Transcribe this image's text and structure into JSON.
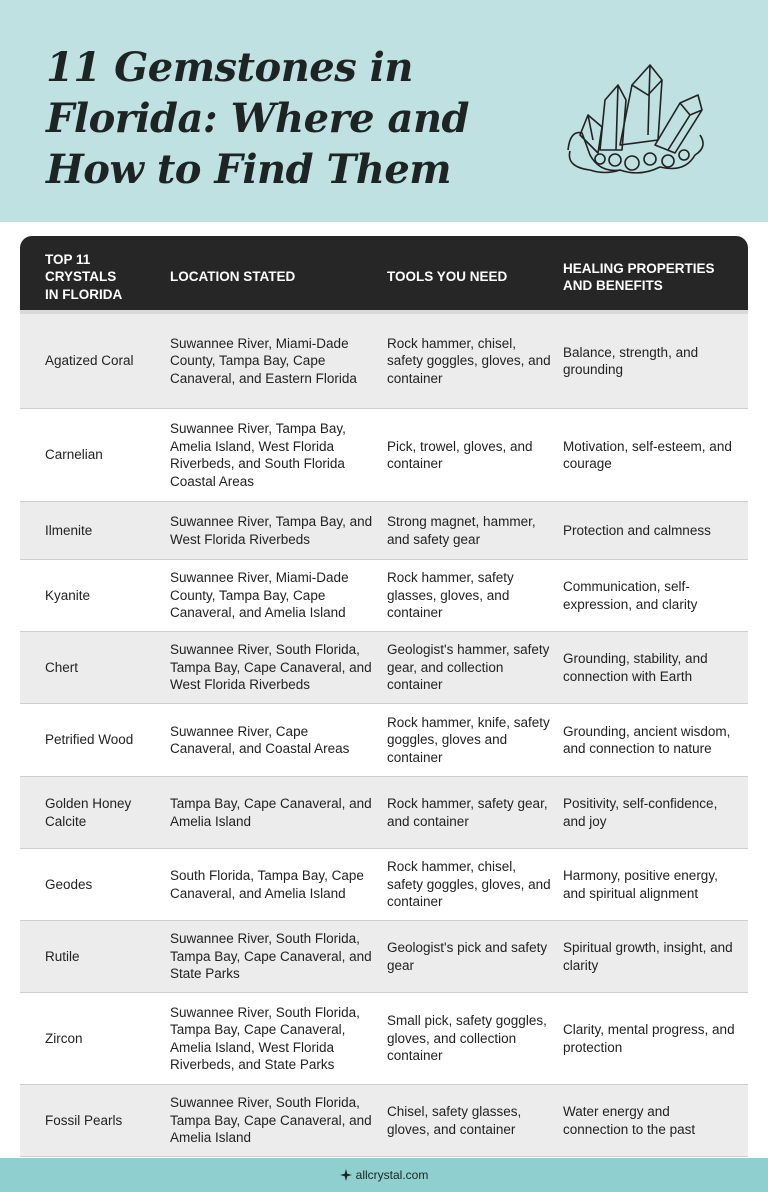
{
  "header": {
    "title": "11 Gemstones in Florida: Where and How to Find Them"
  },
  "table": {
    "columns": [
      "TOP 11 CRYSTALS IN FLORIDA",
      "LOCATION STATED",
      "TOOLS YOU NEED",
      "HEALING PROPERTIES AND BENEFITS"
    ],
    "rows": [
      [
        "Agatized Coral",
        "Suwannee River, Miami-Dade County, Tampa Bay, Cape Canaveral, and Eastern Florida",
        "Rock hammer, chisel, safety goggles, gloves, and container",
        "Balance, strength, and grounding"
      ],
      [
        "Carnelian",
        "Suwannee River, Tampa Bay, Amelia Island, West Florida Riverbeds, and South Florida Coastal Areas",
        "Pick, trowel, gloves, and container",
        "Motivation, self-esteem, and courage"
      ],
      [
        "Ilmenite",
        "Suwannee River, Tampa Bay, and West Florida Riverbeds",
        "Strong magnet, hammer, and safety gear",
        "Protection and calmness"
      ],
      [
        "Kyanite",
        "Suwannee River, Miami-Dade County, Tampa Bay, Cape Canaveral, and Amelia Island",
        "Rock hammer, safety glasses, gloves, and container",
        "Communication, self-expression, and clarity"
      ],
      [
        "Chert",
        "Suwannee River, South Florida, Tampa Bay, Cape Canaveral, and West Florida Riverbeds",
        "Geologist's hammer, safety gear, and collection container",
        "Grounding, stability, and connection with Earth"
      ],
      [
        "Petrified Wood",
        "Suwannee River, Cape Canaveral, and Coastal Areas",
        "Rock hammer, knife, safety goggles, gloves and container",
        "Grounding, ancient wisdom, and connection to nature"
      ],
      [
        "Golden Honey Calcite",
        "Tampa Bay, Cape Canaveral, and Amelia Island",
        "Rock hammer, safety gear, and container",
        "Positivity, self-confidence, and joy"
      ],
      [
        "Geodes",
        "South Florida, Tampa Bay, Cape Canaveral, and Amelia Island",
        "Rock hammer, chisel, safety goggles, gloves, and container",
        "Harmony, positive energy, and spiritual alignment"
      ],
      [
        "Rutile",
        "Suwannee River, South Florida, Tampa Bay, Cape Canaveral, and State Parks",
        "Geologist's pick and safety gear",
        "Spiritual growth, insight, and clarity"
      ],
      [
        "Zircon",
        "Suwannee River, South Florida, Tampa Bay, Cape Canaveral, Amelia Island, West Florida Riverbeds, and State Parks",
        "Small pick, safety goggles, gloves, and collection container",
        "Clarity, mental progress, and protection"
      ],
      [
        "Fossil Pearls",
        "Suwannee River, South Florida, Tampa Bay, Cape Canaveral, and Amelia Island",
        "Chisel, safety glasses, gloves, and container",
        "Water energy and connection to the past"
      ]
    ]
  },
  "footer": {
    "site": "allcrystal.com"
  }
}
